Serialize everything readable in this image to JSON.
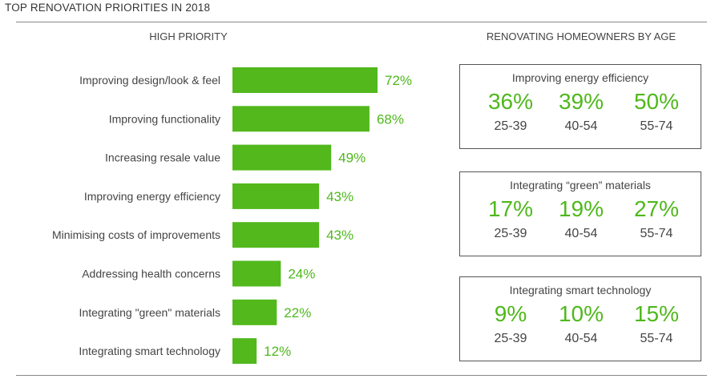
{
  "title": "TOP RENOVATION PRIORITIES IN 2018",
  "left_heading": "HIGH PRIORITY",
  "right_heading": "RENOVATING HOMEOWNERS BY AGE",
  "colors": {
    "bar": "#52b81c",
    "label_green": "#4fb81c",
    "text": "#444444",
    "rule": "#888888"
  },
  "chart_data": [
    {
      "type": "bar",
      "orientation": "horizontal",
      "title": "HIGH PRIORITY",
      "categories": [
        "Improving design/look & feel",
        "Improving functionality",
        "Increasing resale value",
        "Improving energy efficiency",
        "Minimising costs of improvements",
        "Addressing health concerns",
        "Integrating \"green\" materials",
        "Integrating smart technology"
      ],
      "values": [
        72,
        68,
        49,
        43,
        43,
        24,
        22,
        12
      ],
      "value_labels": [
        "72%",
        "68%",
        "49%",
        "43%",
        "43%",
        "24%",
        "22%",
        "12%"
      ],
      "unit": "%",
      "xlim": [
        0,
        100
      ],
      "grid": false,
      "legend": "none"
    },
    {
      "type": "table",
      "title": "RENOVATING HOMEOWNERS BY AGE",
      "groups": [
        {
          "title": "Improving energy efficiency",
          "values": [
            "36%",
            "39%",
            "50%"
          ],
          "ages": [
            "25-39",
            "40-54",
            "55-74"
          ]
        },
        {
          "title": "Integrating “green” materials",
          "values": [
            "17%",
            "19%",
            "27%"
          ],
          "ages": [
            "25-39",
            "40-54",
            "55-74"
          ]
        },
        {
          "title": "Integrating smart technology",
          "values": [
            "9%",
            "10%",
            "15%"
          ],
          "ages": [
            "25-39",
            "40-54",
            "55-74"
          ]
        }
      ]
    }
  ]
}
